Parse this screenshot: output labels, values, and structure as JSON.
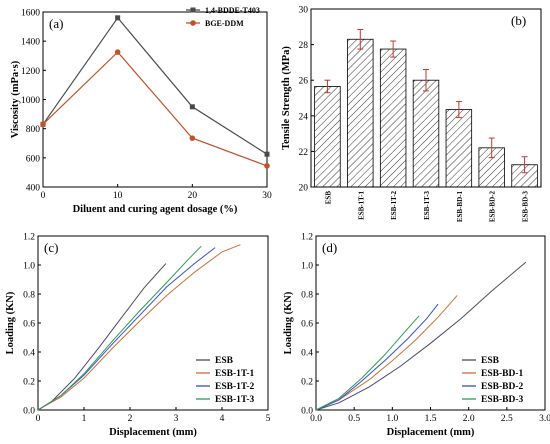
{
  "chart_data": [
    {
      "panel": "(a)",
      "type": "line",
      "xlabel": "Diluent and curing agent dosage (%)",
      "ylabel": "Viscosity (mPa·s)",
      "xlim": [
        0,
        30
      ],
      "ylim": [
        400,
        1600
      ],
      "xticks": [
        0,
        10,
        20,
        30
      ],
      "yticks": [
        400,
        600,
        800,
        1000,
        1200,
        1400,
        1600
      ],
      "legend_position": "top-right",
      "x": [
        0,
        10,
        20,
        30
      ],
      "series": [
        {
          "name": "1,4-BDDE-T403",
          "color": "#4a4a4a",
          "marker": "square",
          "values": [
            830,
            1560,
            950,
            625
          ]
        },
        {
          "name": "BGE-DDM",
          "color": "#c0522e",
          "marker": "circle",
          "values": [
            830,
            1325,
            735,
            545
          ]
        }
      ]
    },
    {
      "panel": "(b)",
      "type": "bar",
      "ylabel": "Tensile Strength (MPa)",
      "ylim": [
        20,
        30
      ],
      "yticks": [
        20,
        22,
        24,
        26,
        28,
        30
      ],
      "categories": [
        "ESB",
        "ESB-1T-1",
        "ESB-1T-2",
        "ESB-1T-3",
        "ESB-BD-1",
        "ESB-BD-2",
        "ESB-BD-3"
      ],
      "values": [
        25.65,
        28.3,
        27.75,
        26.0,
        24.35,
        22.2,
        21.25
      ],
      "errors": [
        0.35,
        0.55,
        0.45,
        0.6,
        0.45,
        0.55,
        0.45
      ],
      "bar_fill": "hatched",
      "error_color": "#c0392b"
    },
    {
      "panel": "(c)",
      "type": "line",
      "xlabel": "Displacement (mm)",
      "ylabel": "Loading (KN)",
      "xlim": [
        0,
        5
      ],
      "ylim": [
        0,
        1.2
      ],
      "xticks": [
        0,
        1,
        2,
        3,
        4,
        5
      ],
      "yticks": [
        0.0,
        0.2,
        0.4,
        0.6,
        0.8,
        1.0,
        1.2
      ],
      "legend_position": "bottom-right",
      "series": [
        {
          "name": "ESB",
          "color": "#4a4a6a",
          "x": [
            0,
            0.3,
            0.8,
            1.3,
            1.8,
            2.3,
            2.78
          ],
          "y": [
            0,
            0.06,
            0.22,
            0.42,
            0.63,
            0.84,
            1.01
          ]
        },
        {
          "name": "ESB-1T-1",
          "color": "#c8703a",
          "x": [
            0,
            0.5,
            1.0,
            1.6,
            2.2,
            2.8,
            3.4,
            4.0,
            4.4
          ],
          "y": [
            0,
            0.09,
            0.22,
            0.42,
            0.61,
            0.79,
            0.95,
            1.09,
            1.14
          ]
        },
        {
          "name": "ESB-1T-2",
          "color": "#3a4fc8",
          "x": [
            0,
            0.5,
            1.0,
            1.6,
            2.2,
            2.8,
            3.4,
            3.85
          ],
          "y": [
            0,
            0.1,
            0.24,
            0.45,
            0.65,
            0.85,
            1.01,
            1.12
          ]
        },
        {
          "name": "ESB-1T-3",
          "color": "#2e9a5a",
          "x": [
            0,
            0.5,
            1.0,
            1.6,
            2.2,
            2.8,
            3.3,
            3.55
          ],
          "y": [
            0,
            0.1,
            0.25,
            0.47,
            0.68,
            0.88,
            1.05,
            1.13
          ]
        }
      ]
    },
    {
      "panel": "(d)",
      "type": "line",
      "xlabel": "Displacement (mm)",
      "ylabel": "Loading (KN)",
      "xlim": [
        0,
        3.0
      ],
      "ylim": [
        0,
        1.2
      ],
      "xticks": [
        0.0,
        0.5,
        1.0,
        1.5,
        2.0,
        2.5,
        3.0
      ],
      "yticks": [
        0.0,
        0.2,
        0.4,
        0.6,
        0.8,
        1.0,
        1.2
      ],
      "legend_position": "bottom-right",
      "series": [
        {
          "name": "ESB",
          "color": "#4a4a6a",
          "x": [
            0,
            0.3,
            0.7,
            1.1,
            1.5,
            1.9,
            2.3,
            2.75
          ],
          "y": [
            0,
            0.05,
            0.16,
            0.3,
            0.46,
            0.63,
            0.82,
            1.02
          ]
        },
        {
          "name": "ESB-BD-1",
          "color": "#c8703a",
          "x": [
            0,
            0.3,
            0.7,
            1.0,
            1.3,
            1.6,
            1.85
          ],
          "y": [
            0,
            0.07,
            0.21,
            0.34,
            0.48,
            0.64,
            0.79
          ]
        },
        {
          "name": "ESB-BD-2",
          "color": "#3a4fc8",
          "x": [
            0,
            0.3,
            0.6,
            0.9,
            1.2,
            1.45,
            1.6
          ],
          "y": [
            0,
            0.07,
            0.2,
            0.34,
            0.49,
            0.63,
            0.73
          ]
        },
        {
          "name": "ESB-BD-3",
          "color": "#2e9a5a",
          "x": [
            0,
            0.3,
            0.6,
            0.9,
            1.15,
            1.35
          ],
          "y": [
            0,
            0.08,
            0.22,
            0.38,
            0.53,
            0.65
          ]
        }
      ]
    }
  ]
}
